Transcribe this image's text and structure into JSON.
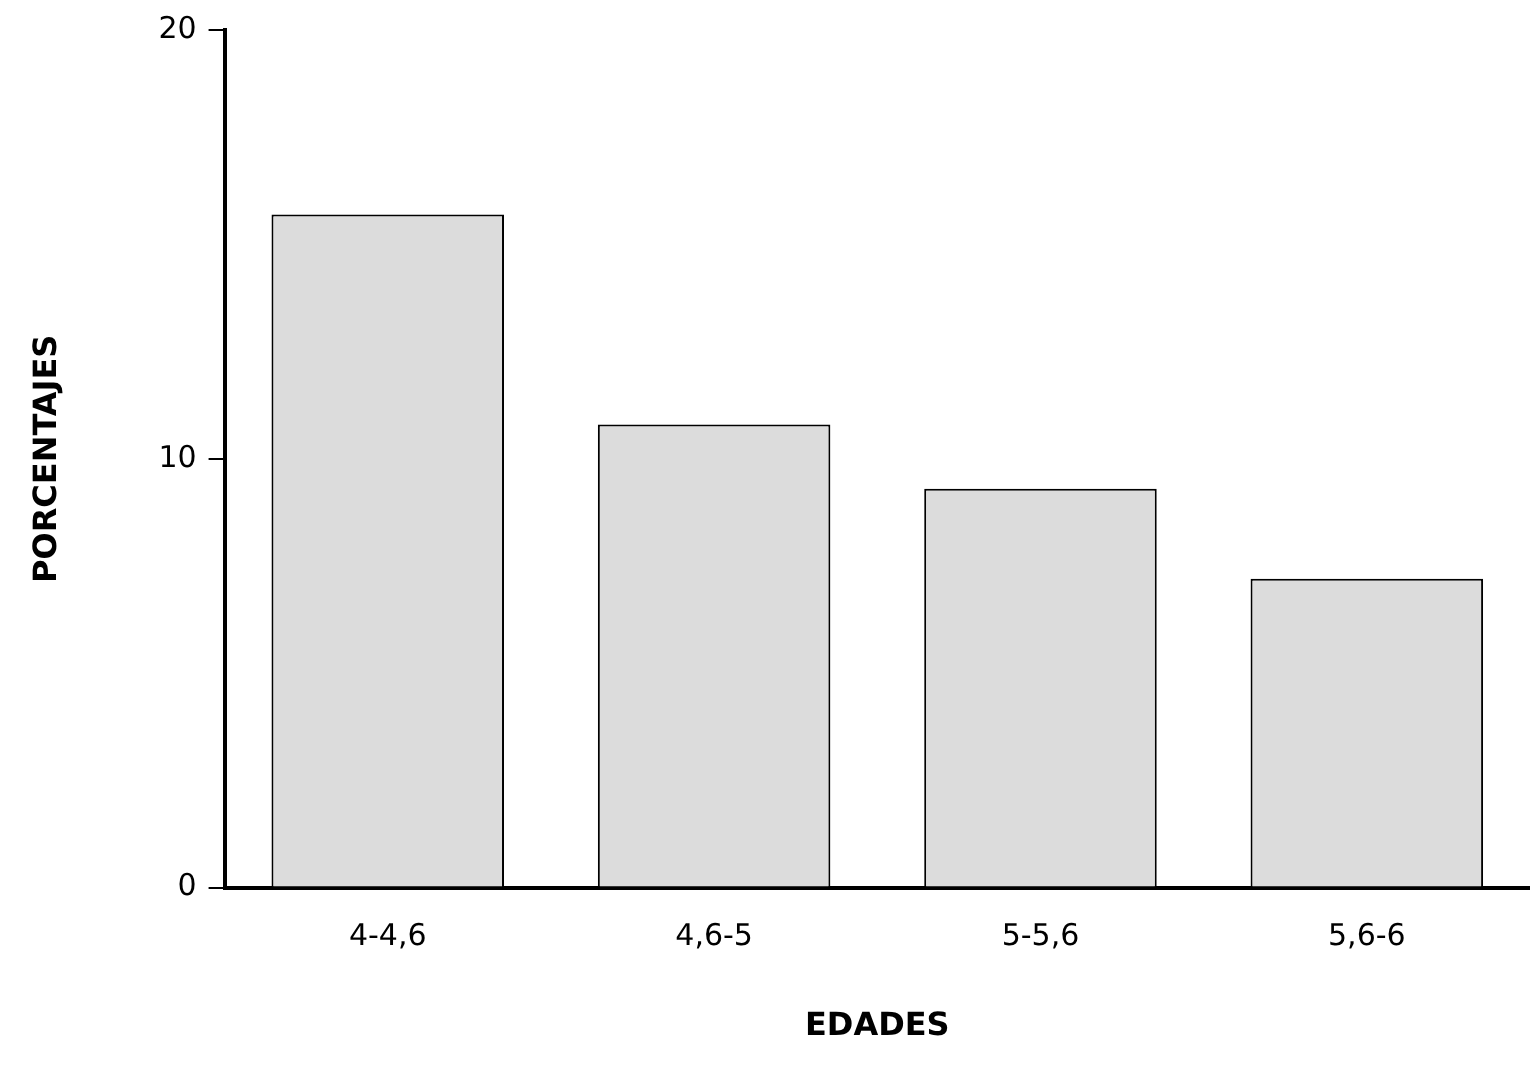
{
  "chart_data": {
    "type": "bar",
    "xlabel": "EDADES",
    "ylabel": "PORCENTAJES",
    "categories": [
      "4-4,6",
      "4,6-5",
      "5-5,6",
      "5,6-6"
    ],
    "values": [
      15.7,
      10.8,
      9.3,
      7.2
    ],
    "color": "#dcdcdc",
    "ylim": [
      0,
      20
    ],
    "yticks": [
      0,
      10,
      20
    ],
    "grid": false,
    "legend": false
  }
}
